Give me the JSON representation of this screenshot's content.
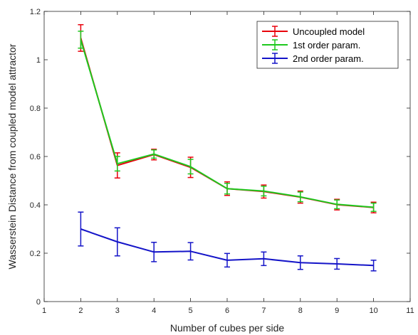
{
  "chart_data": {
    "type": "line",
    "title": "",
    "xlabel": "Number of cubes per side",
    "ylabel": "Wasserstein Distance from coupled model attractor",
    "xlim": [
      1,
      11
    ],
    "ylim": [
      0,
      1.2
    ],
    "xticks": [
      1,
      2,
      3,
      4,
      5,
      6,
      7,
      8,
      9,
      10,
      11
    ],
    "yticks": [
      0,
      0.2,
      0.4,
      0.6,
      0.8,
      1,
      1.2
    ],
    "grid": false,
    "legend_position": "top-right",
    "x": [
      2,
      3,
      4,
      5,
      6,
      7,
      8,
      9,
      10
    ],
    "series": [
      {
        "name": "Uncoupled model",
        "color": "#e8000b",
        "values": [
          1.09,
          0.563,
          0.608,
          0.555,
          0.467,
          0.455,
          0.432,
          0.401,
          0.389
        ],
        "error": [
          0.055,
          0.052,
          0.022,
          0.042,
          0.028,
          0.027,
          0.025,
          0.022,
          0.022
        ]
      },
      {
        "name": "1st order param.",
        "color": "#1ec81e",
        "values": [
          1.083,
          0.57,
          0.61,
          0.558,
          0.467,
          0.457,
          0.433,
          0.402,
          0.39
        ],
        "error": [
          0.035,
          0.03,
          0.017,
          0.03,
          0.022,
          0.02,
          0.02,
          0.018,
          0.017
        ]
      },
      {
        "name": "2nd order param.",
        "color": "#1414c8",
        "values": [
          0.3,
          0.247,
          0.205,
          0.208,
          0.171,
          0.177,
          0.161,
          0.156,
          0.149
        ],
        "error": [
          0.07,
          0.058,
          0.04,
          0.036,
          0.028,
          0.028,
          0.028,
          0.022,
          0.022
        ]
      }
    ]
  }
}
